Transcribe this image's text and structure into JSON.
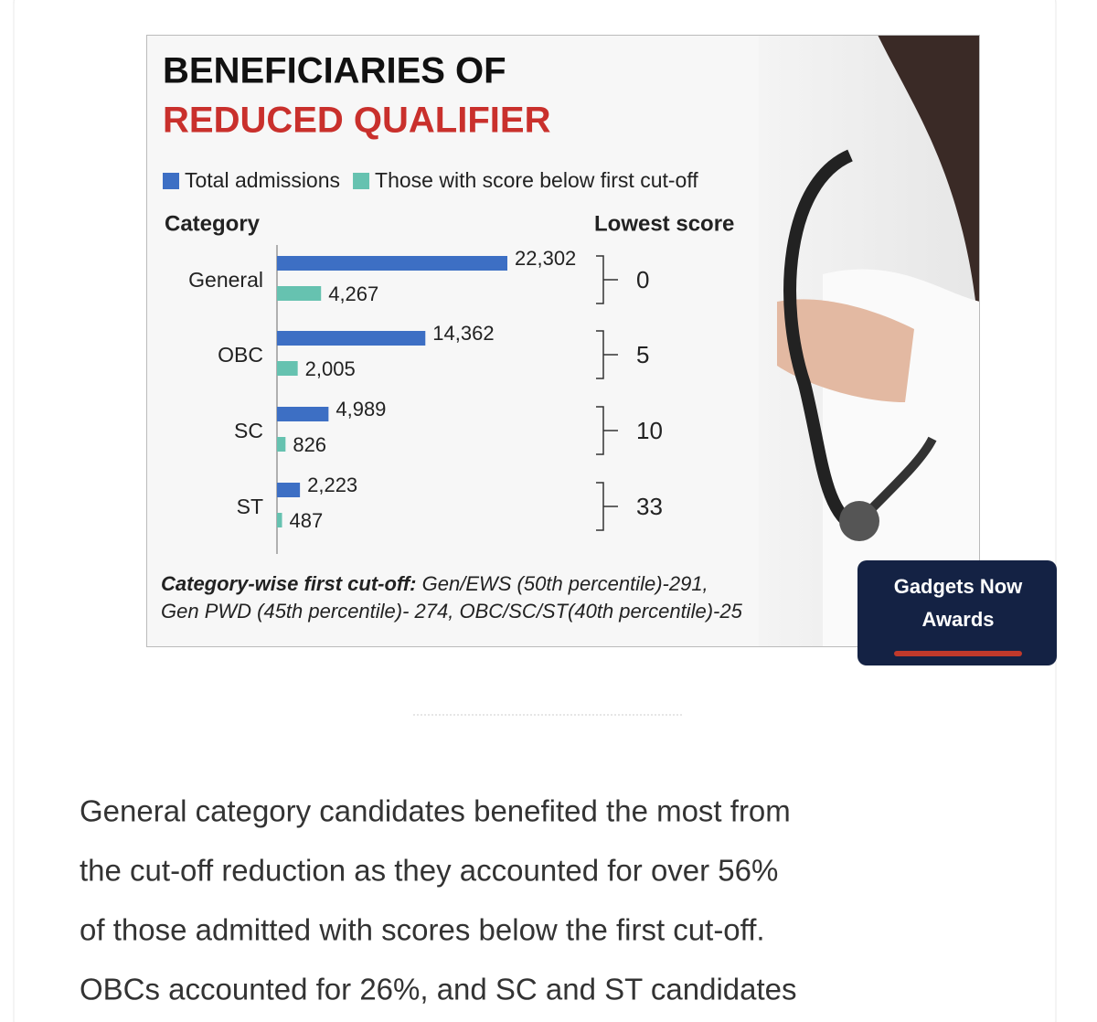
{
  "chart_data": {
    "type": "bar",
    "orientation": "horizontal",
    "title_lines": [
      "BENEFICIARIES OF",
      "REDUCED QUALIFIER"
    ],
    "category_label": "Category",
    "lowest_score_label": "Lowest score",
    "categories": [
      "General",
      "OBC",
      "SC",
      "ST"
    ],
    "series": [
      {
        "name": "Total admissions",
        "color": "#3d6fc4",
        "values": [
          22302,
          14362,
          4989,
          2223
        ],
        "value_labels": [
          "22,302",
          "14,362",
          "4,989",
          "2,223"
        ]
      },
      {
        "name": "Those with score below first cut-off",
        "color": "#66c2b0",
        "values": [
          4267,
          2005,
          826,
          487
        ],
        "value_labels": [
          "4,267",
          "2,005",
          "826",
          "487"
        ]
      }
    ],
    "lowest_scores": [
      0,
      5,
      10,
      33
    ],
    "footnote_bold": "Category-wise first cut-off:",
    "footnote_lines": [
      " Gen/EWS (50th percentile)-291,",
      "Gen PWD (45th percentile)- 274, OBC/SC/ST(40th percentile)-25"
    ]
  },
  "badge": {
    "lines": [
      "Gadgets Now",
      "Awards"
    ]
  },
  "article": {
    "paragraph_lines": [
      "General category candidates benefited the most from",
      "the cut-off reduction as they accounted for over 56%",
      "of those admitted with scores below the first cut-off.",
      "OBCs accounted for 26%, and SC and ST candidates"
    ]
  }
}
